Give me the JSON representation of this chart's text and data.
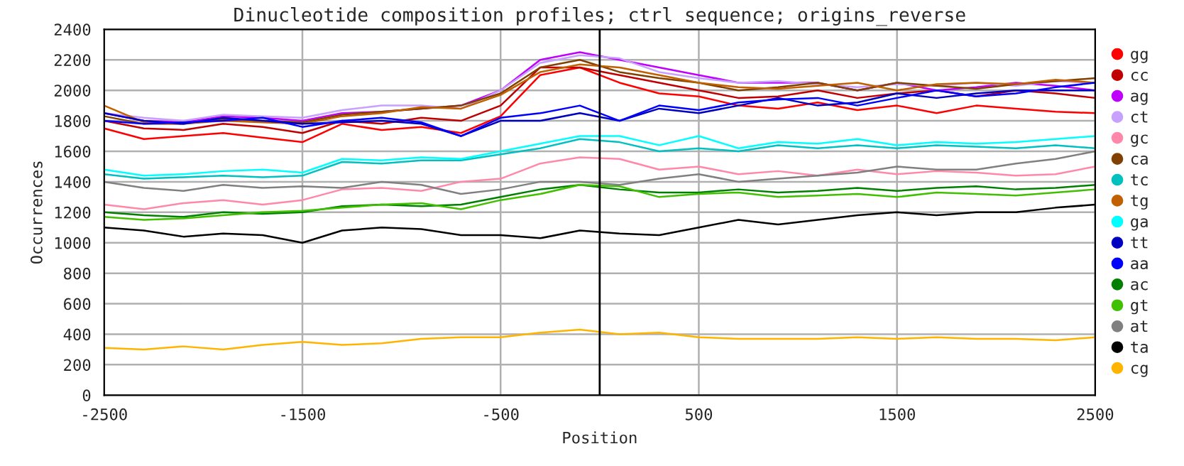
{
  "chart_data": {
    "type": "line",
    "title": "Dinucleotide composition profiles; ctrl sequence; origins_reverse",
    "xlabel": "Position",
    "ylabel": "Occurrences",
    "x": [
      -2500,
      -2300,
      -2100,
      -1900,
      -1700,
      -1500,
      -1300,
      -1100,
      -900,
      -700,
      -500,
      -300,
      -100,
      100,
      300,
      500,
      700,
      900,
      1100,
      1300,
      1500,
      1700,
      1900,
      2100,
      2300,
      2500
    ],
    "xlim": [
      -2500,
      2500
    ],
    "xticks": [
      -2500,
      -1500,
      -500,
      500,
      1500,
      2500
    ],
    "ylim": [
      0,
      2400
    ],
    "yticks": [
      0,
      200,
      400,
      600,
      800,
      1000,
      1200,
      1400,
      1600,
      1800,
      2000,
      2200,
      2400
    ],
    "grid": true,
    "legend": "right",
    "ref_lines": [
      {
        "axis": "x",
        "value": 0,
        "label": null,
        "color": "#000000"
      }
    ],
    "series": [
      {
        "name": "gg",
        "color": "#ff0000",
        "values": [
          1750,
          1680,
          1700,
          1720,
          1690,
          1660,
          1780,
          1740,
          1760,
          1720,
          1830,
          2100,
          2150,
          2050,
          1980,
          1960,
          1900,
          1880,
          1920,
          1870,
          1900,
          1850,
          1900,
          1880,
          1860,
          1850
        ]
      },
      {
        "name": "cc",
        "color": "#c00000",
        "values": [
          1800,
          1750,
          1740,
          1780,
          1760,
          1720,
          1800,
          1780,
          1820,
          1800,
          1900,
          2150,
          2150,
          2100,
          2050,
          2000,
          1950,
          1960,
          2000,
          1950,
          1980,
          2000,
          1960,
          2000,
          1980,
          1950
        ]
      },
      {
        "name": "ag",
        "color": "#c000ff",
        "values": [
          1850,
          1800,
          1790,
          1830,
          1820,
          1800,
          1850,
          1860,
          1880,
          1900,
          2000,
          2200,
          2250,
          2200,
          2150,
          2100,
          2050,
          2050,
          2050,
          2000,
          2050,
          2000,
          2020,
          2050,
          2030,
          2000
        ]
      },
      {
        "name": "ct",
        "color": "#c8a0ff",
        "values": [
          1850,
          1820,
          1800,
          1840,
          1830,
          1820,
          1870,
          1900,
          1900,
          1880,
          2000,
          2180,
          2230,
          2210,
          2120,
          2080,
          2050,
          2060,
          2040,
          2020,
          2040,
          2030,
          2050,
          2030,
          2060,
          2050
        ]
      },
      {
        "name": "gc",
        "color": "#ff88aa",
        "values": [
          1250,
          1220,
          1260,
          1280,
          1250,
          1280,
          1350,
          1360,
          1340,
          1400,
          1420,
          1520,
          1560,
          1550,
          1480,
          1500,
          1450,
          1470,
          1440,
          1480,
          1450,
          1470,
          1460,
          1440,
          1450,
          1500
        ]
      },
      {
        "name": "ca",
        "color": "#804000",
        "values": [
          1830,
          1780,
          1780,
          1810,
          1800,
          1790,
          1840,
          1860,
          1880,
          1900,
          1980,
          2150,
          2200,
          2120,
          2080,
          2050,
          2000,
          2020,
          2050,
          2000,
          2050,
          2030,
          2010,
          2040,
          2060,
          2080
        ]
      },
      {
        "name": "tc",
        "color": "#00c0c0",
        "values": [
          1450,
          1420,
          1430,
          1440,
          1430,
          1440,
          1530,
          1520,
          1540,
          1540,
          1580,
          1620,
          1680,
          1660,
          1600,
          1620,
          1600,
          1640,
          1620,
          1640,
          1620,
          1640,
          1630,
          1620,
          1640,
          1620
        ]
      },
      {
        "name": "tg",
        "color": "#c06000",
        "values": [
          1900,
          1790,
          1780,
          1800,
          1790,
          1780,
          1830,
          1850,
          1890,
          1880,
          1970,
          2120,
          2170,
          2150,
          2100,
          2050,
          2020,
          2010,
          2030,
          2050,
          2000,
          2040,
          2050,
          2040,
          2070,
          2050
        ]
      },
      {
        "name": "ga",
        "color": "#00ffff",
        "values": [
          1480,
          1440,
          1450,
          1470,
          1480,
          1460,
          1550,
          1540,
          1560,
          1550,
          1600,
          1650,
          1700,
          1700,
          1640,
          1700,
          1620,
          1660,
          1650,
          1680,
          1640,
          1660,
          1650,
          1660,
          1680,
          1700
        ]
      },
      {
        "name": "tt",
        "color": "#0000c0",
        "values": [
          1850,
          1800,
          1780,
          1820,
          1800,
          1780,
          1790,
          1800,
          1780,
          1700,
          1800,
          1800,
          1850,
          1800,
          1880,
          1850,
          1900,
          1950,
          1900,
          1920,
          1980,
          1950,
          1980,
          2000,
          2000,
          2000
        ]
      },
      {
        "name": "aa",
        "color": "#0000ff",
        "values": [
          1800,
          1780,
          1790,
          1800,
          1820,
          1760,
          1800,
          1820,
          1790,
          1700,
          1820,
          1850,
          1900,
          1800,
          1900,
          1870,
          1920,
          1940,
          1950,
          1900,
          1950,
          2000,
          1960,
          1980,
          2020,
          2050
        ]
      },
      {
        "name": "ac",
        "color": "#008000",
        "values": [
          1200,
          1180,
          1170,
          1200,
          1190,
          1200,
          1240,
          1250,
          1240,
          1250,
          1300,
          1350,
          1380,
          1350,
          1330,
          1330,
          1350,
          1330,
          1340,
          1360,
          1340,
          1360,
          1370,
          1350,
          1360,
          1380
        ]
      },
      {
        "name": "gt",
        "color": "#40c000",
        "values": [
          1170,
          1150,
          1160,
          1180,
          1200,
          1210,
          1230,
          1250,
          1260,
          1220,
          1280,
          1320,
          1380,
          1370,
          1300,
          1320,
          1330,
          1300,
          1310,
          1320,
          1300,
          1330,
          1320,
          1310,
          1330,
          1350
        ]
      },
      {
        "name": "at",
        "color": "#808080",
        "values": [
          1400,
          1360,
          1340,
          1380,
          1360,
          1370,
          1360,
          1400,
          1380,
          1320,
          1350,
          1400,
          1400,
          1380,
          1420,
          1450,
          1400,
          1420,
          1440,
          1460,
          1500,
          1480,
          1480,
          1520,
          1550,
          1600
        ]
      },
      {
        "name": "ta",
        "color": "#000000",
        "values": [
          1100,
          1080,
          1040,
          1060,
          1050,
          1000,
          1080,
          1100,
          1090,
          1050,
          1050,
          1030,
          1080,
          1060,
          1050,
          1100,
          1150,
          1120,
          1150,
          1180,
          1200,
          1180,
          1200,
          1200,
          1230,
          1250
        ]
      },
      {
        "name": "cg",
        "color": "#ffb400",
        "values": [
          310,
          300,
          320,
          300,
          330,
          350,
          330,
          340,
          370,
          380,
          380,
          410,
          430,
          400,
          410,
          380,
          370,
          370,
          370,
          380,
          370,
          380,
          370,
          370,
          360,
          380
        ]
      }
    ]
  }
}
